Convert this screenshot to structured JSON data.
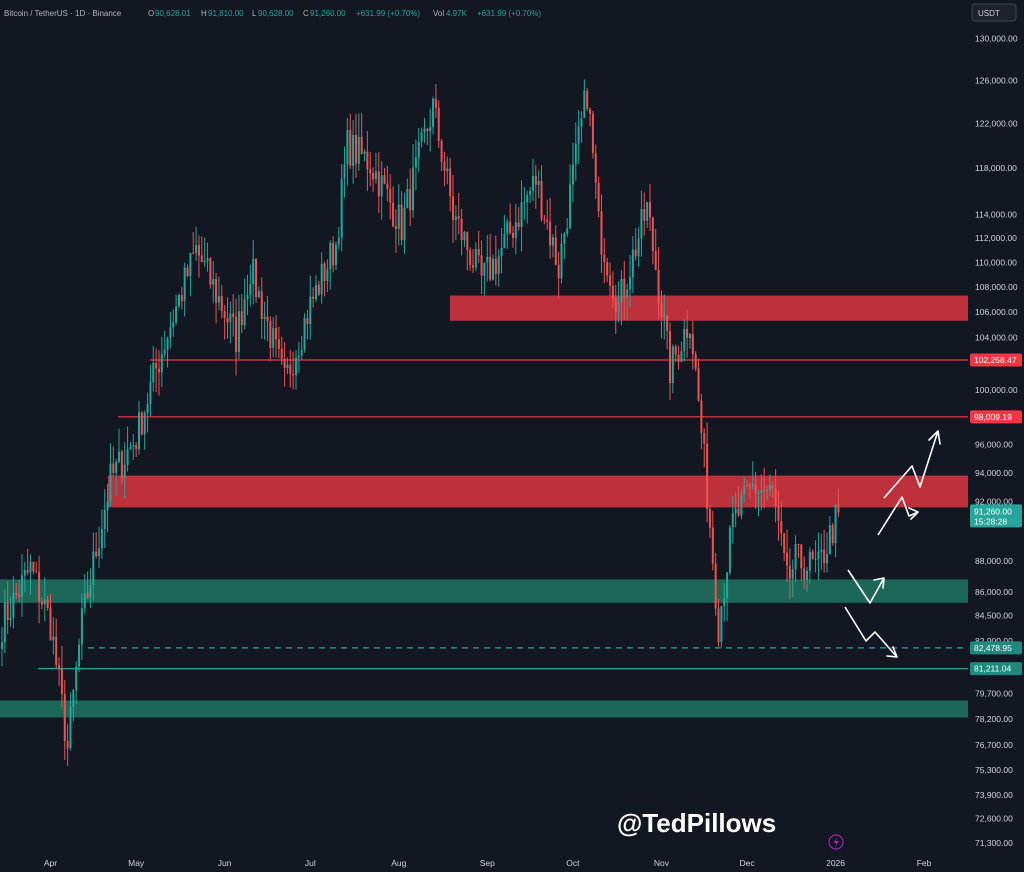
{
  "header": {
    "symbol": "Bitcoin / TetherUS · 1D · Binance",
    "open_label": "O",
    "open": "90,628.01",
    "high_label": "H",
    "high": "91,810.00",
    "low_label": "L",
    "low": "90,628.00",
    "close_label": "C",
    "close": "91,260.00",
    "change": "+631.99 (+0.70%)",
    "vol_label": "Vol",
    "vol": "4.97K",
    "vol_change": "+631.99 (+0.70%)"
  },
  "currency_button": "USDT",
  "watermark": "@TedPillows",
  "colors": {
    "background": "#131722",
    "up": "#26a69a",
    "down": "#ef5350",
    "resistance_zone": "#c8313f",
    "support_zone": "#1c6b5c",
    "resistance_line": "#f23645",
    "support_line": "#26a69a",
    "arrow": "#ffffff"
  },
  "chart_data": {
    "type": "candlestick",
    "title": "Bitcoin / TetherUS · 1D · Binance",
    "x_ticks": [
      "Apr",
      "May",
      "Jun",
      "Jul",
      "Aug",
      "Sep",
      "Oct",
      "Nov",
      "Dec",
      "2026",
      "Feb"
    ],
    "y_ticks": [
      "130,000.00",
      "126,000.00",
      "122,000.00",
      "118,000.00",
      "114,000.00",
      "112,000.00",
      "110,000.00",
      "108,000.00",
      "106,000.00",
      "104,000.00",
      "100,000.00",
      "96,000.00",
      "94,000.00",
      "92,000.00",
      "88,000.00",
      "86,000.00",
      "84,500.00",
      "82,900.00",
      "79,700.00",
      "78,200.00",
      "76,700.00",
      "75,300.00",
      "73,900.00",
      "72,600.00",
      "71,300.00"
    ],
    "y_scale": "log",
    "y_range": [
      70500,
      133000
    ],
    "price_path": [
      [
        "2025-03-15",
        84000
      ],
      [
        "2025-03-25",
        87500
      ],
      [
        "2025-04-01",
        84000
      ],
      [
        "2025-04-07",
        76500
      ],
      [
        "2025-04-12",
        84000
      ],
      [
        "2025-04-22",
        93500
      ],
      [
        "2025-05-01",
        96500
      ],
      [
        "2025-05-10",
        103000
      ],
      [
        "2025-05-22",
        111000
      ],
      [
        "2025-06-05",
        104000
      ],
      [
        "2025-06-10",
        109500
      ],
      [
        "2025-06-22",
        100500
      ],
      [
        "2025-07-01",
        106500
      ],
      [
        "2025-07-10",
        111500
      ],
      [
        "2025-07-14",
        120000
      ],
      [
        "2025-07-22",
        118500
      ],
      [
        "2025-08-02",
        113000
      ],
      [
        "2025-08-13",
        123500
      ],
      [
        "2025-08-20",
        114000
      ],
      [
        "2025-08-30",
        108500
      ],
      [
        "2025-09-05",
        110500
      ],
      [
        "2025-09-18",
        117000
      ],
      [
        "2025-09-26",
        109500
      ],
      [
        "2025-10-06",
        125000
      ],
      [
        "2025-10-10",
        113000
      ],
      [
        "2025-10-17",
        106500
      ],
      [
        "2025-10-27",
        114500
      ],
      [
        "2025-11-04",
        101500
      ],
      [
        "2025-11-11",
        105500
      ],
      [
        "2025-11-21",
        84000
      ],
      [
        "2025-11-26",
        90500
      ],
      [
        "2025-12-03",
        93000
      ],
      [
        "2025-12-10",
        92500
      ],
      [
        "2025-12-15",
        86500
      ],
      [
        "2025-12-18",
        88000
      ],
      [
        "2025-12-26",
        87500
      ],
      [
        "2026-01-02",
        91260
      ]
    ],
    "last_price": "91,260.00",
    "countdown": "15:28:28",
    "levels": [
      {
        "type": "resistance-line",
        "price": 102258.47,
        "label": "102,258.47"
      },
      {
        "type": "resistance-line",
        "price": 98009.19,
        "label": "98,009.19"
      },
      {
        "type": "support-line-dashed",
        "price": 82478.95,
        "label": "82,478.95"
      },
      {
        "type": "support-line",
        "price": 81211.04,
        "label": "81,211.04"
      }
    ],
    "zones": [
      {
        "type": "resistance",
        "low": 105300,
        "high": 107300
      },
      {
        "type": "resistance",
        "low": 91600,
        "high": 93800
      },
      {
        "type": "support",
        "low": 85300,
        "high": 86800
      },
      {
        "type": "support",
        "low": 78300,
        "high": 79300
      }
    ]
  }
}
